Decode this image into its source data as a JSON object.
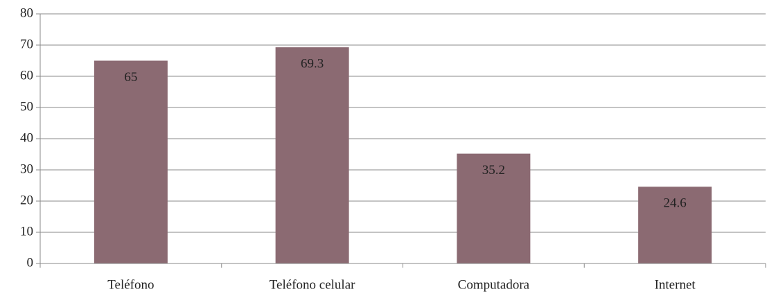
{
  "chart_data": {
    "type": "bar",
    "categories": [
      "Teléfono",
      "Teléfono celular",
      "Computadora",
      "Internet"
    ],
    "values": [
      65,
      69.3,
      35.2,
      24.6
    ],
    "color": "#8b6a72",
    "ylim": [
      0,
      80
    ],
    "yticks": [
      0,
      10,
      20,
      30,
      40,
      50,
      60,
      70,
      80
    ],
    "grid": true
  }
}
